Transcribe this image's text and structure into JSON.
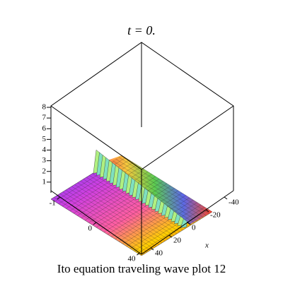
{
  "chart_data": {
    "type": "surface3d",
    "title": "t = 0.",
    "caption": "Ito equation  traveling wave plot 12",
    "xlabel": "x",
    "zlim": [
      0,
      8
    ],
    "zticks": [
      1,
      2,
      3,
      4,
      5,
      6,
      7,
      8
    ],
    "xlim": [
      50,
      -50
    ],
    "xticks": [
      -40,
      -20,
      0,
      20,
      40
    ],
    "yticks": [
      -1,
      0,
      40
    ]
  }
}
